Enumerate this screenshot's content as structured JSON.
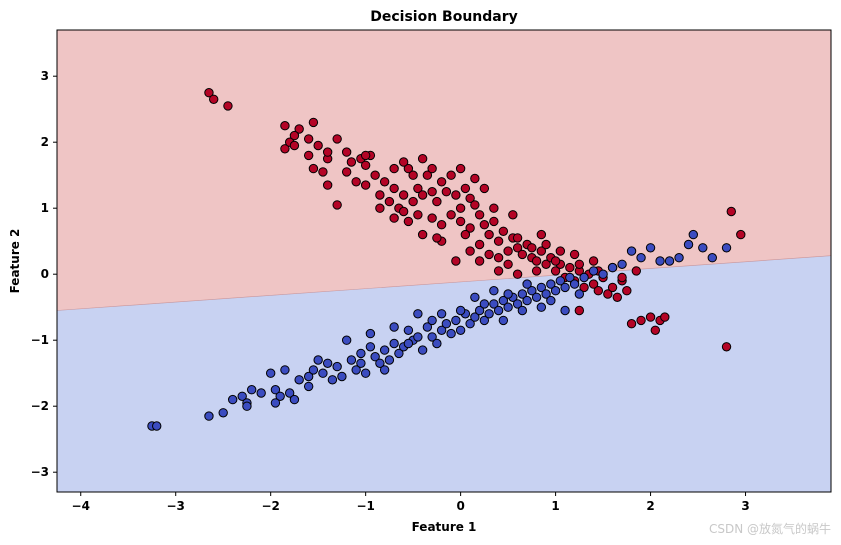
{
  "chart_data": {
    "type": "scatter",
    "title": "Decision Boundary",
    "xlabel": "Feature 1",
    "ylabel": "Feature 2",
    "xlim": [
      -4.25,
      3.9
    ],
    "ylim": [
      -3.3,
      3.7
    ],
    "xticks": [
      -4,
      -3,
      -2,
      -1,
      0,
      1,
      2,
      3
    ],
    "yticks": [
      -3,
      -2,
      -1,
      0,
      1,
      2,
      3
    ],
    "grid": false,
    "legend": "none",
    "decision_boundary": {
      "x": [
        -4.25,
        3.9
      ],
      "y": [
        -0.55,
        0.28
      ]
    },
    "regions": {
      "upper_color": "#efc5c5",
      "lower_color": "#c8d2f2"
    },
    "series": [
      {
        "color": "#b40426",
        "points": [
          [
            -2.65,
            2.75
          ],
          [
            -2.6,
            2.65
          ],
          [
            -2.45,
            2.55
          ],
          [
            -1.85,
            2.25
          ],
          [
            -1.7,
            2.2
          ],
          [
            -1.55,
            2.3
          ],
          [
            -1.75,
            2.1
          ],
          [
            -1.6,
            2.05
          ],
          [
            -1.85,
            1.9
          ],
          [
            -1.8,
            2.0
          ],
          [
            -1.75,
            1.95
          ],
          [
            -1.5,
            1.95
          ],
          [
            -1.4,
            1.75
          ],
          [
            -1.4,
            1.85
          ],
          [
            -1.3,
            2.05
          ],
          [
            -1.55,
            1.6
          ],
          [
            -1.45,
            1.55
          ],
          [
            -1.4,
            1.35
          ],
          [
            -1.2,
            1.55
          ],
          [
            -1.15,
            1.7
          ],
          [
            -1.05,
            1.75
          ],
          [
            -1.0,
            1.65
          ],
          [
            -0.95,
            1.8
          ],
          [
            -1.1,
            1.4
          ],
          [
            -1.0,
            1.35
          ],
          [
            -0.9,
            1.5
          ],
          [
            -1.3,
            1.05
          ],
          [
            -0.85,
            1.2
          ],
          [
            -0.8,
            1.4
          ],
          [
            -0.7,
            1.3
          ],
          [
            -0.75,
            1.1
          ],
          [
            -0.65,
            1.0
          ],
          [
            -0.6,
            0.95
          ],
          [
            -0.55,
            0.8
          ],
          [
            -0.7,
            0.85
          ],
          [
            -0.6,
            1.2
          ],
          [
            -0.5,
            1.1
          ],
          [
            -0.45,
            1.3
          ],
          [
            -0.4,
            1.2
          ],
          [
            -0.55,
            1.6
          ],
          [
            -0.6,
            1.7
          ],
          [
            -0.35,
            1.5
          ],
          [
            -0.3,
            1.25
          ],
          [
            -0.25,
            1.1
          ],
          [
            -0.2,
            1.4
          ],
          [
            -0.15,
            1.25
          ],
          [
            -0.1,
            1.5
          ],
          [
            -0.05,
            1.2
          ],
          [
            0.0,
            1.0
          ],
          [
            0.05,
            1.3
          ],
          [
            0.1,
            1.15
          ],
          [
            0.15,
            1.05
          ],
          [
            0.2,
            0.9
          ],
          [
            0.1,
            0.7
          ],
          [
            0.0,
            0.8
          ],
          [
            -0.1,
            0.9
          ],
          [
            -0.2,
            0.75
          ],
          [
            -0.3,
            0.85
          ],
          [
            -0.4,
            0.6
          ],
          [
            -0.2,
            0.5
          ],
          [
            0.25,
            0.75
          ],
          [
            0.3,
            0.6
          ],
          [
            0.35,
            0.8
          ],
          [
            0.4,
            0.5
          ],
          [
            0.45,
            0.65
          ],
          [
            0.5,
            0.35
          ],
          [
            0.55,
            0.55
          ],
          [
            0.6,
            0.4
          ],
          [
            0.65,
            0.3
          ],
          [
            0.7,
            0.45
          ],
          [
            0.75,
            0.25
          ],
          [
            0.8,
            0.2
          ],
          [
            0.85,
            0.35
          ],
          [
            0.9,
            0.15
          ],
          [
            0.95,
            0.25
          ],
          [
            1.0,
            0.05
          ],
          [
            1.05,
            0.15
          ],
          [
            1.1,
            -0.05
          ],
          [
            1.15,
            0.1
          ],
          [
            1.2,
            -0.1
          ],
          [
            1.25,
            0.05
          ],
          [
            1.3,
            -0.2
          ],
          [
            1.35,
            0.0
          ],
          [
            1.4,
            -0.15
          ],
          [
            1.45,
            -0.25
          ],
          [
            1.5,
            -0.05
          ],
          [
            1.55,
            -0.3
          ],
          [
            1.6,
            -0.2
          ],
          [
            1.65,
            -0.35
          ],
          [
            1.7,
            -0.1
          ],
          [
            1.75,
            -0.25
          ],
          [
            1.8,
            -0.75
          ],
          [
            1.9,
            -0.7
          ],
          [
            2.0,
            -0.65
          ],
          [
            2.05,
            -0.85
          ],
          [
            2.1,
            -0.7
          ],
          [
            2.15,
            -0.65
          ],
          [
            1.85,
            0.05
          ],
          [
            1.7,
            -0.05
          ],
          [
            1.6,
            0.1
          ],
          [
            1.4,
            0.2
          ],
          [
            1.2,
            0.3
          ],
          [
            1.0,
            0.2
          ],
          [
            0.8,
            0.05
          ],
          [
            0.6,
            0.0
          ],
          [
            0.4,
            0.05
          ],
          [
            0.3,
            0.3
          ],
          [
            0.5,
            0.15
          ],
          [
            0.2,
            0.2
          ],
          [
            -0.05,
            0.2
          ],
          [
            0.1,
            0.35
          ],
          [
            2.8,
            -1.1
          ],
          [
            2.95,
            0.6
          ],
          [
            2.85,
            0.95
          ],
          [
            1.25,
            -0.55
          ],
          [
            -1.0,
            1.8
          ],
          [
            -0.5,
            1.5
          ],
          [
            -0.3,
            1.6
          ],
          [
            0.15,
            1.45
          ],
          [
            0.35,
            1.0
          ],
          [
            -0.85,
            1.0
          ],
          [
            -0.45,
            0.9
          ],
          [
            -0.25,
            0.55
          ],
          [
            0.05,
            0.6
          ],
          [
            0.2,
            0.45
          ],
          [
            0.4,
            0.25
          ],
          [
            0.6,
            0.55
          ],
          [
            0.75,
            0.4
          ],
          [
            0.9,
            0.45
          ],
          [
            1.05,
            0.35
          ],
          [
            1.25,
            0.15
          ],
          [
            1.45,
            0.05
          ],
          [
            -1.6,
            1.8
          ],
          [
            -1.2,
            1.85
          ],
          [
            -0.7,
            1.6
          ],
          [
            -0.4,
            1.75
          ],
          [
            0.0,
            1.6
          ],
          [
            0.25,
            1.3
          ],
          [
            0.55,
            0.9
          ],
          [
            0.85,
            0.6
          ]
        ]
      },
      {
        "color": "#3b4cc0",
        "points": [
          [
            -3.25,
            -2.3
          ],
          [
            -3.2,
            -2.3
          ],
          [
            -2.65,
            -2.15
          ],
          [
            -2.5,
            -2.1
          ],
          [
            -2.4,
            -1.9
          ],
          [
            -2.3,
            -1.85
          ],
          [
            -2.2,
            -1.75
          ],
          [
            -2.25,
            -1.95
          ],
          [
            -2.1,
            -1.8
          ],
          [
            -1.95,
            -1.75
          ],
          [
            -1.9,
            -1.85
          ],
          [
            -1.8,
            -1.8
          ],
          [
            -1.75,
            -1.9
          ],
          [
            -1.7,
            -1.6
          ],
          [
            -1.6,
            -1.55
          ],
          [
            -1.55,
            -1.45
          ],
          [
            -1.45,
            -1.5
          ],
          [
            -1.4,
            -1.35
          ],
          [
            -1.3,
            -1.4
          ],
          [
            -1.25,
            -1.55
          ],
          [
            -1.15,
            -1.3
          ],
          [
            -1.1,
            -1.45
          ],
          [
            -1.05,
            -1.2
          ],
          [
            -1.0,
            -1.5
          ],
          [
            -0.95,
            -1.1
          ],
          [
            -0.9,
            -1.25
          ],
          [
            -0.85,
            -1.35
          ],
          [
            -0.8,
            -1.15
          ],
          [
            -0.75,
            -1.3
          ],
          [
            -0.7,
            -1.05
          ],
          [
            -0.65,
            -1.2
          ],
          [
            -0.6,
            -1.1
          ],
          [
            -0.55,
            -0.85
          ],
          [
            -0.5,
            -1.0
          ],
          [
            -0.45,
            -0.95
          ],
          [
            -0.4,
            -1.15
          ],
          [
            -0.35,
            -0.8
          ],
          [
            -0.3,
            -0.95
          ],
          [
            -0.25,
            -1.05
          ],
          [
            -0.2,
            -0.85
          ],
          [
            -0.15,
            -0.75
          ],
          [
            -0.1,
            -0.9
          ],
          [
            -0.05,
            -0.7
          ],
          [
            0.0,
            -0.85
          ],
          [
            0.05,
            -0.6
          ],
          [
            0.1,
            -0.75
          ],
          [
            0.15,
            -0.65
          ],
          [
            0.2,
            -0.55
          ],
          [
            0.25,
            -0.7
          ],
          [
            0.3,
            -0.6
          ],
          [
            0.35,
            -0.45
          ],
          [
            0.4,
            -0.55
          ],
          [
            0.45,
            -0.4
          ],
          [
            0.5,
            -0.5
          ],
          [
            0.55,
            -0.35
          ],
          [
            0.6,
            -0.45
          ],
          [
            0.65,
            -0.3
          ],
          [
            0.7,
            -0.4
          ],
          [
            0.75,
            -0.25
          ],
          [
            0.8,
            -0.35
          ],
          [
            0.85,
            -0.2
          ],
          [
            0.9,
            -0.3
          ],
          [
            0.95,
            -0.15
          ],
          [
            1.0,
            -0.25
          ],
          [
            1.05,
            -0.1
          ],
          [
            1.1,
            -0.2
          ],
          [
            1.15,
            -0.05
          ],
          [
            1.2,
            -0.15
          ],
          [
            1.3,
            -0.05
          ],
          [
            1.4,
            0.05
          ],
          [
            1.5,
            0.0
          ],
          [
            1.6,
            0.1
          ],
          [
            1.7,
            0.15
          ],
          [
            1.8,
            0.35
          ],
          [
            1.9,
            0.25
          ],
          [
            2.0,
            0.4
          ],
          [
            2.1,
            0.2
          ],
          [
            2.2,
            0.2
          ],
          [
            2.3,
            0.25
          ],
          [
            2.4,
            0.45
          ],
          [
            2.45,
            0.6
          ],
          [
            2.55,
            0.4
          ],
          [
            2.65,
            0.25
          ],
          [
            2.8,
            0.4
          ],
          [
            1.1,
            -0.55
          ],
          [
            -2.0,
            -1.5
          ],
          [
            -1.85,
            -1.45
          ],
          [
            -1.5,
            -1.3
          ],
          [
            -1.2,
            -1.0
          ],
          [
            -0.95,
            -0.9
          ],
          [
            -0.7,
            -0.8
          ],
          [
            -0.45,
            -0.6
          ],
          [
            -0.2,
            -0.6
          ],
          [
            0.0,
            -0.55
          ],
          [
            0.25,
            -0.45
          ],
          [
            0.5,
            -0.3
          ],
          [
            0.65,
            -0.55
          ],
          [
            0.85,
            -0.5
          ],
          [
            0.35,
            -0.25
          ],
          [
            0.15,
            -0.35
          ],
          [
            -0.3,
            -0.7
          ],
          [
            -0.55,
            -1.05
          ],
          [
            -0.8,
            -1.45
          ],
          [
            -1.05,
            -1.35
          ],
          [
            -1.35,
            -1.6
          ],
          [
            -1.6,
            -1.7
          ],
          [
            -1.95,
            -1.95
          ],
          [
            -2.25,
            -2.0
          ],
          [
            0.45,
            -0.7
          ],
          [
            0.7,
            -0.15
          ],
          [
            0.95,
            -0.4
          ],
          [
            1.25,
            -0.3
          ]
        ]
      }
    ]
  },
  "watermark": "CSDN @放氮气的蜗牛"
}
